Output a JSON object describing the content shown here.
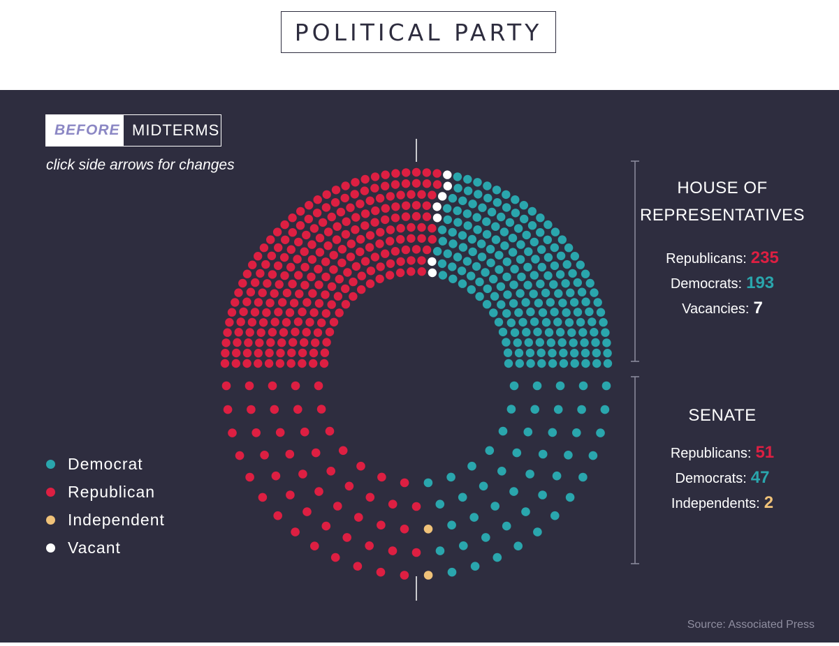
{
  "title": "POLITICAL PARTY",
  "toggle": {
    "active": "BEFORE",
    "inactive": "MIDTERMS"
  },
  "hint": "click side arrows for changes",
  "legend": [
    {
      "label": "Democrat",
      "color": "#2aa6ad"
    },
    {
      "label": "Republican",
      "color": "#dd1f42"
    },
    {
      "label": "Independent",
      "color": "#f0c279"
    },
    {
      "label": "Vacant",
      "color": "#ffffff"
    }
  ],
  "house": {
    "title_line1": "HOUSE OF",
    "title_line2": "REPRESENTATIVES",
    "stats": [
      {
        "label": "Republicans:",
        "value": "235",
        "color": "#dd1f42"
      },
      {
        "label": "Democrats:",
        "value": "193",
        "color": "#2aa6ad"
      },
      {
        "label": "Vacancies:",
        "value": "7",
        "color": "#ffffff"
      }
    ]
  },
  "senate": {
    "title": "SENATE",
    "stats": [
      {
        "label": "Republicans:",
        "value": "51",
        "color": "#dd1f42"
      },
      {
        "label": "Democrats:",
        "value": "47",
        "color": "#2aa6ad"
      },
      {
        "label": "Independents:",
        "value": "2",
        "color": "#f0c279"
      }
    ]
  },
  "source": "Source: Associated Press",
  "chart_data": [
    {
      "type": "parliament",
      "name": "House of Representatives",
      "series": [
        {
          "name": "Republican",
          "value": 235,
          "color": "#dd1f42"
        },
        {
          "name": "Vacant",
          "value": 7,
          "color": "#ffffff"
        },
        {
          "name": "Democrat",
          "value": 193,
          "color": "#2aa6ad"
        }
      ],
      "total": 435
    },
    {
      "type": "parliament",
      "name": "Senate",
      "series": [
        {
          "name": "Democrat",
          "value": 47,
          "color": "#2aa6ad"
        },
        {
          "name": "Independent",
          "value": 2,
          "color": "#f0c279"
        },
        {
          "name": "Republican",
          "value": 51,
          "color": "#dd1f42"
        }
      ],
      "total": 100
    }
  ]
}
